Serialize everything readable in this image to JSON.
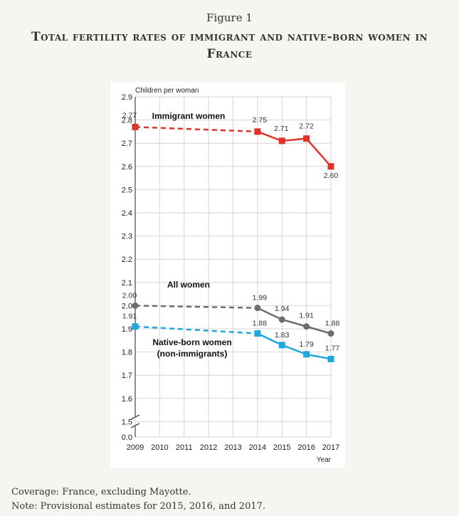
{
  "figure_label": "Figure 1",
  "title": "Total fertility rates of immigrant and native-born women in France",
  "notes": {
    "coverage": "Coverage: France, excluding Mayotte.",
    "provisional": "Note: Provisional estimates for 2015, 2016, and 2017."
  },
  "chart_data": {
    "type": "line",
    "ylabel": "Children per woman",
    "xlabel": "Year",
    "x": [
      2009,
      2010,
      2011,
      2012,
      2013,
      2014,
      2015,
      2016,
      2017
    ],
    "x_tick_labels": [
      "2009",
      "2010",
      "2011",
      "2012",
      "2013",
      "2014",
      "2015",
      "2016",
      "2017"
    ],
    "y_ticks": [
      1.5,
      1.6,
      1.7,
      1.8,
      1.9,
      2.0,
      2.1,
      2.2,
      2.3,
      2.4,
      2.5,
      2.6,
      2.7,
      2.8,
      2.9
    ],
    "y_tick_labels": [
      "1.5",
      "1.6",
      "1.7",
      "1.8",
      "1.9",
      "2.0",
      "2.1",
      "2.2",
      "2.3",
      "2.4",
      "2.5",
      "2.6",
      "2.7",
      "2.8",
      "2.9"
    ],
    "y_axis_break": {
      "bottom_label": "0.0",
      "bottom_value": 0.0,
      "break_below": 1.5
    },
    "ylim": [
      1.5,
      2.9
    ],
    "grid": true,
    "interpolated_segment": {
      "from_x": 2009,
      "to_x": 2014,
      "style": "dashed"
    },
    "series": [
      {
        "name": "Immigrant women",
        "color": "#e0312b",
        "marker": "square",
        "points": [
          {
            "x": 2009,
            "y": 2.77,
            "label": "2.77"
          },
          {
            "x": 2014,
            "y": 2.75,
            "label": "2.75"
          },
          {
            "x": 2015,
            "y": 2.71,
            "label": "2.71"
          },
          {
            "x": 2016,
            "y": 2.72,
            "label": "2.72"
          },
          {
            "x": 2017,
            "y": 2.6,
            "label": "2.60"
          }
        ]
      },
      {
        "name": "All women",
        "color": "#6d6d6d",
        "marker": "circle",
        "points": [
          {
            "x": 2009,
            "y": 2.0,
            "label": "2.00"
          },
          {
            "x": 2014,
            "y": 1.99,
            "label": "1.99"
          },
          {
            "x": 2015,
            "y": 1.94,
            "label": "1.94"
          },
          {
            "x": 2016,
            "y": 1.91,
            "label": "1.91"
          },
          {
            "x": 2017,
            "y": 1.88,
            "label": "1.88"
          }
        ]
      },
      {
        "name": "Native-born women\n(non-immigrants)",
        "name_lines": [
          "Native-born women",
          "(non-immigrants)"
        ],
        "color": "#1fa8dd",
        "marker": "square",
        "points": [
          {
            "x": 2009,
            "y": 1.91,
            "label": "1.91"
          },
          {
            "x": 2014,
            "y": 1.88,
            "label": "1.88"
          },
          {
            "x": 2015,
            "y": 1.83,
            "label": "1.83"
          },
          {
            "x": 2016,
            "y": 1.79,
            "label": "1.79"
          },
          {
            "x": 2017,
            "y": 1.77,
            "label": "1.77"
          }
        ]
      }
    ]
  }
}
